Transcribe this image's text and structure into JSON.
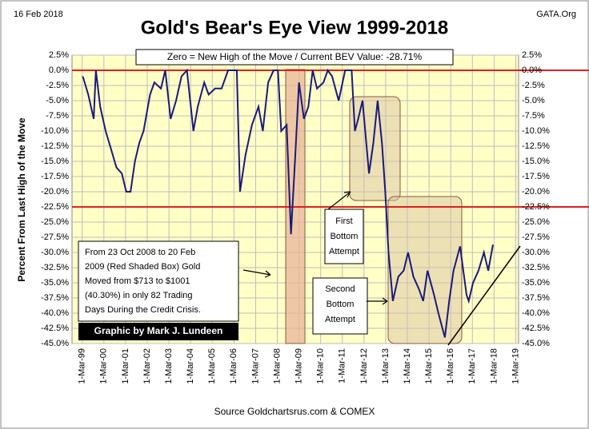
{
  "chart_data": {
    "type": "line",
    "title": "Gold's Bear's Eye View 1999-2018",
    "date": "16 Feb 2018",
    "site": "GATA.Org",
    "subtitle": "Zero = New High of the Move / Current BEV Value:  -28.71%",
    "y_label": "Percent  From Last High of the Move",
    "source": "Source  Goldchartsrus.com & COMEX",
    "credit": "Graphic by Mark J. Lundeen",
    "note_lines": [
      "From 23 Oct 2008 to 20 Feb",
      "2009 (Red Shaded Box)  Gold",
      "Moved from $713 to $1001",
      "(40.30%) in only 82 Trading",
      "Days During the Credit Crisis."
    ],
    "first_label": [
      "First",
      "Bottom",
      "Attempt"
    ],
    "second_label": [
      "Second",
      "Bottom",
      "Attempt"
    ],
    "color": "#1a1a7a",
    "x": [
      1999.2,
      1999.45,
      1999.7,
      1999.8,
      2000.0,
      2000.25,
      2000.5,
      2000.75,
      2001.0,
      2001.2,
      2001.4,
      2001.6,
      2001.8,
      2002.0,
      2002.3,
      2002.5,
      2002.8,
      2003.0,
      2003.25,
      2003.5,
      2003.75,
      2004.0,
      2004.3,
      2004.5,
      2004.8,
      2005.0,
      2005.3,
      2005.6,
      2005.9,
      2006.3,
      2006.45,
      2006.7,
      2007.0,
      2007.3,
      2007.5,
      2007.75,
      2008.0,
      2008.2,
      2008.35,
      2008.6,
      2008.8,
      2009.0,
      2009.17,
      2009.4,
      2009.6,
      2009.8,
      2010.0,
      2010.3,
      2010.5,
      2010.7,
      2011.0,
      2011.3,
      2011.6,
      2011.75,
      2011.9,
      2012.1,
      2012.4,
      2012.6,
      2012.8,
      2013.0,
      2013.15,
      2013.3,
      2013.5,
      2013.75,
      2014.0,
      2014.2,
      2014.45,
      2014.7,
      2014.9,
      2015.1,
      2015.4,
      2015.6,
      2015.9,
      2016.1,
      2016.3,
      2016.6,
      2016.9,
      2017.0,
      2017.2,
      2017.45,
      2017.7,
      2017.9,
      2018.12
    ],
    "values": [
      -1,
      -4,
      -8,
      0,
      -6,
      -10,
      -13,
      -16,
      -17,
      -20,
      -20,
      -15,
      -12,
      -10,
      -4,
      -2,
      -3,
      0,
      -8,
      -5,
      -1,
      0,
      -10,
      -6,
      -2,
      -4,
      -3,
      -3,
      0,
      0,
      -20,
      -14,
      -9,
      -6,
      -10,
      -2,
      0,
      0,
      -10,
      -9,
      -27,
      -14,
      -2,
      -8,
      -6,
      0,
      -3,
      -2,
      0,
      -1,
      -5,
      0,
      0,
      -10,
      -8,
      -5,
      -17,
      -12,
      -5,
      -12,
      -20,
      -30,
      -38,
      -34,
      -33,
      -30,
      -34,
      -36,
      -38,
      -33,
      -37,
      -40,
      -44,
      -38,
      -33,
      -29,
      -37,
      -38,
      -35,
      -33,
      -30,
      -33,
      -28.71
    ],
    "xlim": [
      1998.7,
      2019.3
    ],
    "xticks": [
      {
        "value": 1999.17,
        "label": "1-Mar-99"
      },
      {
        "value": 2000.17,
        "label": "1-Mar-00"
      },
      {
        "value": 2001.17,
        "label": "1-Mar-01"
      },
      {
        "value": 2002.17,
        "label": "1-Mar-02"
      },
      {
        "value": 2003.17,
        "label": "1-Mar-03"
      },
      {
        "value": 2004.17,
        "label": "1-Mar-04"
      },
      {
        "value": 2005.17,
        "label": "1-Mar-05"
      },
      {
        "value": 2006.17,
        "label": "1-Mar-06"
      },
      {
        "value": 2007.17,
        "label": "1-Mar-07"
      },
      {
        "value": 2008.17,
        "label": "1-Mar-08"
      },
      {
        "value": 2009.17,
        "label": "1-Mar-09"
      },
      {
        "value": 2010.17,
        "label": "1-Mar-10"
      },
      {
        "value": 2011.17,
        "label": "1-Mar-11"
      },
      {
        "value": 2012.17,
        "label": "1-Mar-12"
      },
      {
        "value": 2013.17,
        "label": "1-Mar-13"
      },
      {
        "value": 2014.17,
        "label": "1-Mar-14"
      },
      {
        "value": 2015.17,
        "label": "1-Mar-15"
      },
      {
        "value": 2016.17,
        "label": "1-Mar-16"
      },
      {
        "value": 2017.17,
        "label": "1-Mar-17"
      },
      {
        "value": 2018.17,
        "label": "1-Mar-18"
      },
      {
        "value": 2019.17,
        "label": "1-Mar-19"
      }
    ],
    "ylim": [
      -45,
      2.5
    ],
    "yticks": [
      {
        "value": 2.5,
        "label": "2.5%"
      },
      {
        "value": 0,
        "label": "0.0%"
      },
      {
        "value": -2.5,
        "label": "-2.5%"
      },
      {
        "value": -5,
        "label": "-5.0%"
      },
      {
        "value": -7.5,
        "label": "-7.5%"
      },
      {
        "value": -10,
        "label": "-10.0%"
      },
      {
        "value": -12.5,
        "label": "-12.5%"
      },
      {
        "value": -15,
        "label": "-15.0%"
      },
      {
        "value": -17.5,
        "label": "-17.5%"
      },
      {
        "value": -20,
        "label": "-20.0%"
      },
      {
        "value": -22.5,
        "label": "-22.5%"
      },
      {
        "value": -25,
        "label": "-25.0%"
      },
      {
        "value": -27.5,
        "label": "-27.5%"
      },
      {
        "value": -30,
        "label": "-30.0%"
      },
      {
        "value": -32.5,
        "label": "-32.5%"
      },
      {
        "value": -35,
        "label": "-35.0%"
      },
      {
        "value": -37.5,
        "label": "-37.5%"
      },
      {
        "value": -40,
        "label": "-40.0%"
      },
      {
        "value": -42.5,
        "label": "-42.5%"
      },
      {
        "value": -45,
        "label": "-45.0%"
      }
    ],
    "red_lines": [
      0,
      -22.5
    ],
    "grid": true
  }
}
